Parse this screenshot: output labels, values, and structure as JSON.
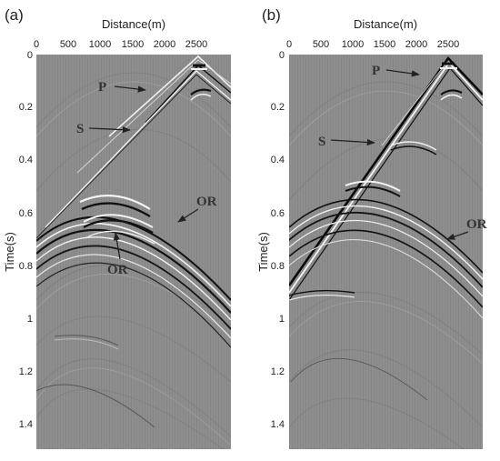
{
  "panels": [
    {
      "label": "(a)",
      "xlabel": "Distance(m)",
      "ylabel": "Time(s)",
      "xticks": [
        "0",
        "500",
        "1000",
        "1500",
        "2000",
        "2500"
      ],
      "yticks": [
        "0",
        "0.2",
        "0.4",
        "0.6",
        "0.8",
        "1",
        "1.2",
        "1.4"
      ],
      "annotations": [
        "P",
        "S",
        "OR",
        "OR"
      ]
    },
    {
      "label": "(b)",
      "xlabel": "Distance(m)",
      "ylabel": "Time(s)",
      "xticks": [
        "0",
        "500",
        "1000",
        "1500",
        "2000",
        "2500"
      ],
      "yticks": [
        "0",
        "0.2",
        "0.4",
        "0.6",
        "0.8",
        "1",
        "1.2",
        "1.4"
      ],
      "annotations": [
        "P",
        "S",
        "OR"
      ]
    }
  ],
  "colors": {
    "background": "#8c8c8c",
    "event_dark": "#0a0a0a",
    "event_light": "#f4f4f4",
    "arrow": "#222222"
  }
}
